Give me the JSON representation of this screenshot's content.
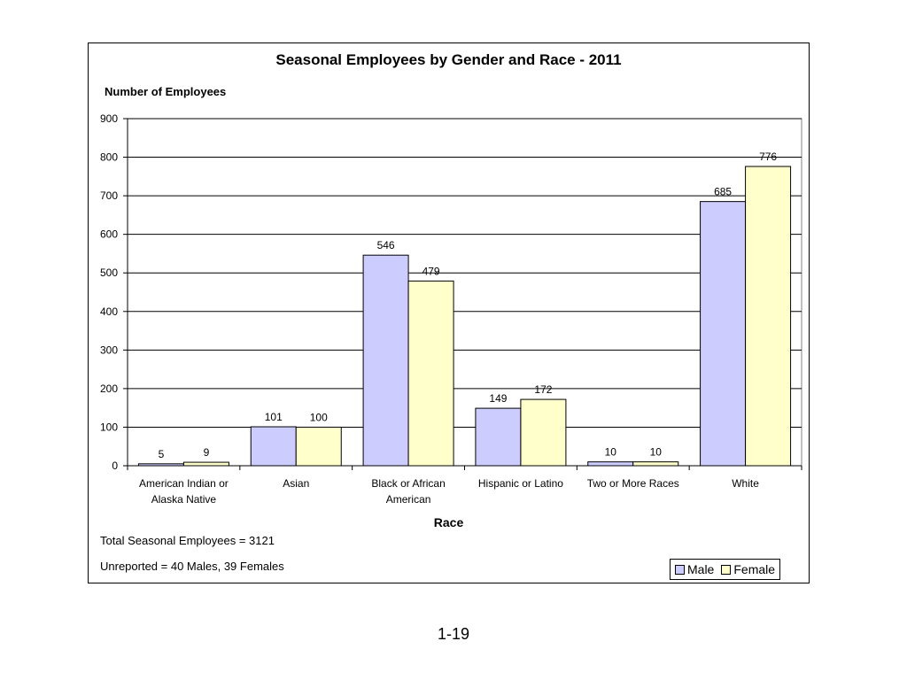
{
  "chart_data": {
    "type": "bar",
    "title": "Seasonal Employees by Gender and Race - 2011",
    "ylabel": "Number of Employees",
    "xlabel": "Race",
    "ylim": [
      0,
      900
    ],
    "yticks": [
      0,
      100,
      200,
      300,
      400,
      500,
      600,
      700,
      800,
      900
    ],
    "grid": true,
    "legend_position": "bottom-right",
    "categories": [
      [
        "American Indian or",
        "Alaska Native"
      ],
      [
        "Asian"
      ],
      [
        "Black or African",
        "American"
      ],
      [
        "Hispanic or Latino"
      ],
      [
        "Two or More Races"
      ],
      [
        "White"
      ]
    ],
    "series": [
      {
        "name": "Male",
        "color": "#ccccff",
        "values": [
          5,
          101,
          546,
          149,
          10,
          685
        ]
      },
      {
        "name": "Female",
        "color": "#ffffcc",
        "values": [
          9,
          100,
          479,
          172,
          10,
          776
        ]
      }
    ]
  },
  "notes": {
    "total": "Total Seasonal Employees = 3121",
    "unreported": "Unreported = 40 Males, 39 Females"
  },
  "page_number": "1-19"
}
